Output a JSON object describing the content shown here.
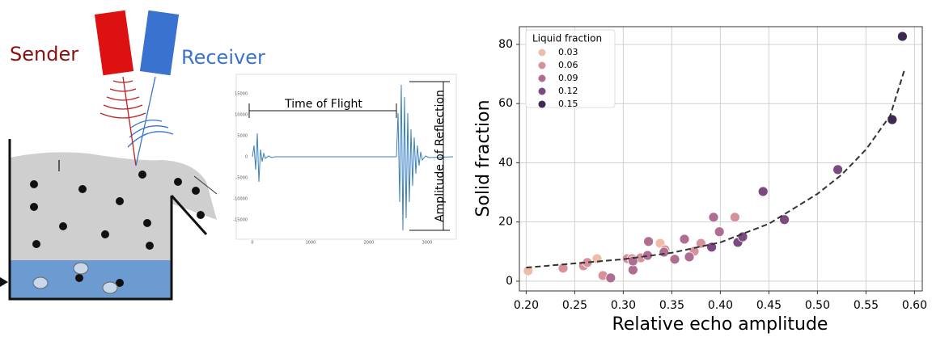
{
  "diagram": {
    "sender": "Sender",
    "receiver": "Receiver",
    "time_of_flight": "Time of Flight",
    "amplitude": "Amplitude of Reflection",
    "waveform": {
      "xticks": [
        0,
        1000,
        2000,
        3000
      ],
      "yticks": [
        15000,
        10000,
        5000,
        0,
        -5000,
        -10000,
        -15000
      ]
    }
  },
  "chart_data": {
    "type": "scatter",
    "xlabel": "Relative echo amplitude",
    "ylabel": "Solid fraction",
    "legend_title": "Liquid fraction",
    "legend_position": "upper left",
    "grid": true,
    "xlim": [
      0.193,
      0.608
    ],
    "ylim": [
      -3.3,
      86
    ],
    "xticks": [
      {
        "value": 0.2,
        "label": "0.20"
      },
      0.25,
      {
        "value": 0.3,
        "label": "0.30"
      },
      0.35,
      {
        "value": 0.4,
        "label": "0.40"
      },
      0.45,
      {
        "value": 0.5,
        "label": "0.50"
      },
      0.55,
      {
        "value": 0.6,
        "label": "0.60"
      }
    ],
    "yticks": [
      0,
      20,
      40,
      60,
      80
    ],
    "series": [
      {
        "name": "0.03",
        "color": "#efbcab",
        "x": [
          0.202,
          0.273,
          0.338
        ],
        "values": [
          3.5,
          7.6,
          12.8
        ]
      },
      {
        "name": "0.06",
        "color": "#d6929a",
        "x": [
          0.238,
          0.259,
          0.263,
          0.279,
          0.304,
          0.309,
          0.318,
          0.343,
          0.373,
          0.38,
          0.415
        ],
        "values": [
          4.4,
          5.2,
          6.3,
          1.9,
          7.6,
          7.6,
          7.9,
          10.6,
          10.1,
          12.8,
          21.6
        ]
      },
      {
        "name": "0.09",
        "color": "#b06d92",
        "x": [
          0.287,
          0.31,
          0.31,
          0.325,
          0.326,
          0.342,
          0.353,
          0.363,
          0.368,
          0.393,
          0.399
        ],
        "values": [
          1.1,
          3.8,
          6.8,
          8.7,
          13.4,
          9.8,
          7.4,
          14.2,
          8.2,
          21.6,
          16.7
        ]
      },
      {
        "name": "0.12",
        "color": "#7c4a80",
        "x": [
          0.391,
          0.418,
          0.423,
          0.444,
          0.466,
          0.521
        ],
        "values": [
          11.5,
          13.1,
          15.0,
          30.3,
          20.8,
          37.7
        ]
      },
      {
        "name": "0.15",
        "color": "#3d2952",
        "x": [
          0.577,
          0.5875
        ],
        "values": [
          54.6,
          82.7
        ]
      }
    ],
    "fit": {
      "color": "#333333",
      "x": [
        0.2,
        0.3,
        0.35,
        0.4,
        0.45,
        0.5,
        0.525,
        0.55,
        0.575,
        0.59
      ],
      "values": [
        4.6,
        7.4,
        9.6,
        13.1,
        19.4,
        29.5,
        36,
        44.5,
        56,
        71.8
      ]
    }
  }
}
